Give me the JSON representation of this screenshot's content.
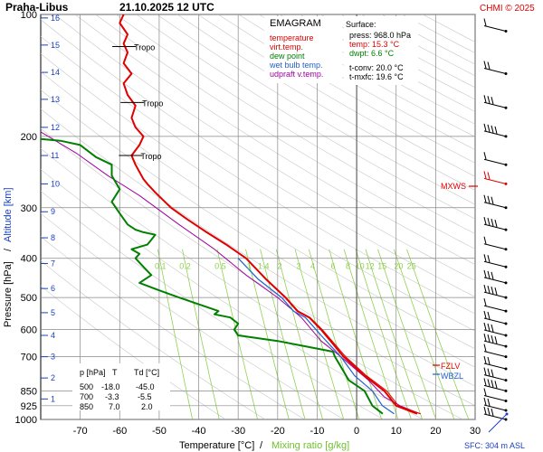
{
  "header": {
    "station": "Praha-Libus",
    "datetime": "21.10.2025 12 UTC",
    "copyright": "CHMI © 2025"
  },
  "legend": {
    "title": "EMAGRAM",
    "items": [
      {
        "label": "temperature",
        "color": "#e00000"
      },
      {
        "label": "virt.temp.",
        "color": "#e00000"
      },
      {
        "label": "dew point",
        "color": "#008000"
      },
      {
        "label": "wet bulb temp.",
        "color": "#2060d0"
      },
      {
        "label": "udpraft v.temp.",
        "color": "#a000a0"
      }
    ]
  },
  "surface": {
    "title": "Surface:",
    "press": "press: 968.0 hPa",
    "temp": "temp: 15.3 °C",
    "dwpt": "dwpt: 6.6 °C",
    "tconv": "t-conv: 20.0 °C",
    "tmxfc": "t-mxfc: 19.6 °C"
  },
  "levels_table": {
    "headers": [
      "p [hPa]",
      "T",
      "Td [°C]"
    ],
    "rows": [
      [
        "500",
        "-18.0",
        "-45.0"
      ],
      [
        "700",
        "-3.3",
        "-5.5"
      ],
      [
        "850",
        "7.0",
        "2.0"
      ]
    ]
  },
  "labels": {
    "tropo": "Tropo",
    "mxws": "MXWS",
    "fzlv": "FZLV",
    "wbzl": "WBZL",
    "sfc": "SFC: 304 m ASL",
    "yaxis_pressure": "Pressure [hPa]",
    "yaxis_slash": "/",
    "yaxis_altitude": "Altitude [km]",
    "xaxis_temp": "Temperature [°C]",
    "xaxis_slash": "/",
    "xaxis_mix": "Mixing ratio [g/kg]"
  },
  "colors": {
    "temperature": "#e00000",
    "dewpoint": "#008000",
    "wetbulb": "#2060d0",
    "updraft": "#a000a0",
    "mixing": "#90d050",
    "altitude": "#1a3fc0",
    "grid": "#888888",
    "dryad": "#c8c8c8"
  },
  "chart_data": {
    "type": "line",
    "y_scale": "log-pressure",
    "xlim": [
      -80,
      30
    ],
    "ylim": [
      1000,
      100
    ],
    "x_ticks": [
      -70,
      -60,
      -50,
      -40,
      -30,
      -20,
      -10,
      0,
      10,
      20,
      30
    ],
    "p_ticks": [
      100,
      200,
      300,
      400,
      500,
      600,
      700,
      850,
      925,
      1000
    ],
    "altitude_km_ticks": [
      {
        "km": 1,
        "p": 890
      },
      {
        "km": 2,
        "p": 790
      },
      {
        "km": 3,
        "p": 700
      },
      {
        "km": 4,
        "p": 620
      },
      {
        "km": 5,
        "p": 545
      },
      {
        "km": 6,
        "p": 475
      },
      {
        "km": 7,
        "p": 412
      },
      {
        "km": 8,
        "p": 356
      },
      {
        "km": 9,
        "p": 307
      },
      {
        "km": 10,
        "p": 262
      },
      {
        "km": 11,
        "p": 223
      },
      {
        "km": 12,
        "p": 190
      },
      {
        "km": 13,
        "p": 162
      },
      {
        "km": 14,
        "p": 139
      },
      {
        "km": 15,
        "p": 119
      },
      {
        "km": 16,
        "p": 102
      }
    ],
    "mixing_ratio_labels": [
      "0.1",
      "0.2",
      "0.5",
      "1",
      "1.4",
      "2",
      "3",
      "4",
      "6",
      "8",
      "10",
      "12",
      "15",
      "20",
      "25"
    ],
    "tropopause_p": [
      120,
      165,
      223
    ],
    "series": [
      {
        "name": "temperature",
        "points": [
          [
            15.3,
            968
          ],
          [
            10,
            925
          ],
          [
            7,
            850
          ],
          [
            2,
            780
          ],
          [
            -3.3,
            700
          ],
          [
            -9,
            600
          ],
          [
            -12,
            560
          ],
          [
            -15,
            540
          ],
          [
            -18,
            500
          ],
          [
            -23,
            450
          ],
          [
            -28,
            400
          ],
          [
            -33,
            370
          ],
          [
            -38,
            345
          ],
          [
            -43,
            320
          ],
          [
            -47,
            300
          ],
          [
            -51,
            275
          ],
          [
            -53,
            262
          ],
          [
            -54,
            255
          ],
          [
            -56,
            235
          ],
          [
            -57,
            223
          ],
          [
            -55,
            210
          ],
          [
            -54,
            200
          ],
          [
            -56,
            190
          ],
          [
            -57,
            180
          ],
          [
            -56,
            168
          ],
          [
            -58,
            158
          ],
          [
            -59,
            148
          ],
          [
            -57,
            140
          ],
          [
            -59,
            132
          ],
          [
            -58,
            124
          ],
          [
            -59,
            118
          ],
          [
            -58,
            112
          ],
          [
            -60,
            105
          ],
          [
            -59,
            100
          ]
        ]
      },
      {
        "name": "virt.temp.",
        "points": [
          [
            16.2,
            968
          ],
          [
            10.6,
            925
          ],
          [
            7.6,
            850
          ],
          [
            2.5,
            780
          ],
          [
            -2.8,
            700
          ],
          [
            -8.7,
            600
          ],
          [
            -11.8,
            560
          ],
          [
            -14.8,
            540
          ],
          [
            -17.9,
            500
          ],
          [
            -22.9,
            450
          ],
          [
            -28,
            400
          ]
        ]
      },
      {
        "name": "dew point",
        "points": [
          [
            6.6,
            968
          ],
          [
            4,
            925
          ],
          [
            2,
            850
          ],
          [
            -2,
            800
          ],
          [
            -5.5,
            700
          ],
          [
            -6,
            680
          ],
          [
            -20,
            640
          ],
          [
            -30,
            620
          ],
          [
            -31,
            600
          ],
          [
            -30,
            580
          ],
          [
            -32,
            560
          ],
          [
            -36,
            550
          ],
          [
            -35,
            540
          ],
          [
            -45,
            500
          ],
          [
            -50,
            480
          ],
          [
            -55,
            460
          ],
          [
            -52,
            440
          ],
          [
            -54,
            420
          ],
          [
            -56,
            400
          ],
          [
            -55,
            390
          ],
          [
            -57,
            380
          ],
          [
            -53,
            370
          ],
          [
            -52,
            360
          ],
          [
            -51,
            350
          ],
          [
            -54,
            345
          ],
          [
            -56,
            340
          ],
          [
            -58,
            330
          ],
          [
            -60,
            310
          ],
          [
            -62,
            290
          ],
          [
            -60,
            270
          ],
          [
            -62,
            250
          ],
          [
            -62,
            235
          ],
          [
            -66,
            225
          ],
          [
            -70,
            210
          ],
          [
            -75,
            205
          ],
          [
            -80,
            203
          ]
        ]
      },
      {
        "name": "wet bulb temp.",
        "points": [
          [
            9.5,
            968
          ],
          [
            6.5,
            925
          ],
          [
            4,
            850
          ],
          [
            -0.5,
            780
          ],
          [
            -4,
            700
          ],
          [
            -9,
            620
          ],
          [
            -13,
            560
          ],
          [
            -16,
            540
          ],
          [
            -19,
            500
          ],
          [
            -25,
            450
          ],
          [
            -30,
            400
          ]
        ]
      },
      {
        "name": "udpraft v.temp.",
        "points": [
          [
            16,
            968
          ],
          [
            11,
            925
          ],
          [
            7,
            880
          ],
          [
            3,
            800
          ],
          [
            -4,
            700
          ],
          [
            -9,
            640
          ],
          [
            -14,
            560
          ],
          [
            -20,
            500
          ],
          [
            -28,
            440
          ],
          [
            -36,
            380
          ],
          [
            -45,
            330
          ],
          [
            -55,
            280
          ],
          [
            -63,
            250
          ],
          [
            -71,
            220
          ],
          [
            -80,
            195
          ]
        ]
      }
    ],
    "wind_barbs_p": [
      110,
      140,
      170,
      200,
      235,
      262,
      300,
      340,
      380,
      420,
      460,
      500,
      540,
      580,
      620,
      660,
      700,
      750,
      800,
      850,
      900,
      950,
      1000
    ],
    "mxws_p": 262
  }
}
